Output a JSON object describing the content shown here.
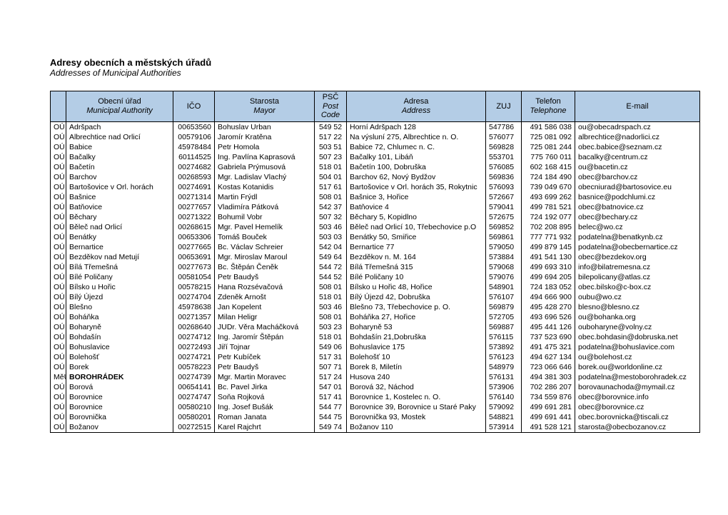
{
  "header": {
    "title_cz": "Adresy obecních a městských úřadů",
    "title_en": "Addresses of Municipal Authorities"
  },
  "table": {
    "columns": {
      "typ": {
        "label": "",
        "sub": ""
      },
      "urad": {
        "label": "Obecní úřad",
        "sub": "Municipal Authority"
      },
      "ico": {
        "label": "IČO",
        "sub": ""
      },
      "star": {
        "label": "Starosta",
        "sub": "Mayor"
      },
      "psc": {
        "label": "PSČ",
        "sub": "Post Code"
      },
      "adr": {
        "label": "Adresa",
        "sub": "Address"
      },
      "zuj": {
        "label": "ZUJ",
        "sub": ""
      },
      "tel": {
        "label": "Telefon",
        "sub": "Telephone"
      },
      "mail": {
        "label": "E-mail",
        "sub": ""
      }
    },
    "rows": [
      {
        "typ": "OÚ",
        "urad": "Adršpach",
        "ico": "00653560",
        "star": "Bohuslav Urban",
        "psc": "549 52",
        "adr": "Horní Adršpach 128",
        "zuj": "547786",
        "tel": "491 586 038",
        "mail": "ou@obecadrspach.cz"
      },
      {
        "typ": "OÚ",
        "urad": "Albrechtice nad Orlicí",
        "ico": "00579106",
        "star": "Jaromír Kratěna",
        "psc": "517 22",
        "adr": "Na výsluní 275, Albrechtice n. O.",
        "zuj": "576077",
        "tel": "725 081 092",
        "mail": "albrechtice@nadorlici.cz"
      },
      {
        "typ": "OÚ",
        "urad": "Babice",
        "ico": "45978484",
        "star": "Petr Homola",
        "psc": "503 51",
        "adr": "Babice 72, Chlumec n. C.",
        "zuj": "569828",
        "tel": "725 081 244",
        "mail": "obec.babice@seznam.cz"
      },
      {
        "typ": "OÚ",
        "urad": "Bačalky",
        "ico": "60114525",
        "star": "Ing. Pavlína Kaprasová",
        "psc": "507 23",
        "adr": "Bačalky 101, Libáň",
        "zuj": "553701",
        "tel": "775 760 011",
        "mail": "bacalky@centrum.cz"
      },
      {
        "typ": "OÚ",
        "urad": "Bačetín",
        "ico": "00274682",
        "star": "Gabriela Prýmusová",
        "psc": "518 01",
        "adr": "Bačetín 100, Dobruška",
        "zuj": "576085",
        "tel": "602 168 415",
        "mail": "ou@bacetin.cz"
      },
      {
        "typ": "OÚ",
        "urad": "Barchov",
        "ico": "00268593",
        "star": "Mgr. Ladislav Vlachý",
        "psc": "504 01",
        "adr": "Barchov 62, Nový Bydžov",
        "zuj": "569836",
        "tel": "724 184 490",
        "mail": "obec@barchov.cz"
      },
      {
        "typ": "OÚ",
        "urad": "Bartošovice v Orl. horách",
        "ico": "00274691",
        "star": "Kostas Kotanidis",
        "psc": "517 61",
        "adr": "Bartošovice v Orl. horách 35, Rokytnic",
        "zuj": "576093",
        "tel": "739 049 670",
        "mail": "obecniurad@bartosovice.eu"
      },
      {
        "typ": "OÚ",
        "urad": "Bašnice",
        "ico": "00271314",
        "star": "Martin Frýdl",
        "psc": "508 01",
        "adr": "Bašnice 3, Hořice",
        "zuj": "572667",
        "tel": "493 699 262",
        "mail": "basnice@podchlumi.cz"
      },
      {
        "typ": "OÚ",
        "urad": "Batňovice",
        "ico": "00277657",
        "star": "Vladimíra Pátková",
        "psc": "542 37",
        "adr": "Batňovice 4",
        "zuj": "579041",
        "tel": "499 781 521",
        "mail": "obec@batnovice.cz"
      },
      {
        "typ": "OÚ",
        "urad": "Běchary",
        "ico": "00271322",
        "star": "Bohumil Vobr",
        "psc": "507 32",
        "adr": "Běchary 5, Kopidlno",
        "zuj": "572675",
        "tel": "724 192 077",
        "mail": "obec@bechary.cz"
      },
      {
        "typ": "OÚ",
        "urad": "Běleč nad Orlicí",
        "ico": "00268615",
        "star": "Mgr. Pavel Hemelík",
        "psc": "503 46",
        "adr": "Běleč nad Orlicí 10, Třebechovice p.O",
        "zuj": "569852",
        "tel": "702 208 895",
        "mail": "belec@wo.cz"
      },
      {
        "typ": "OÚ",
        "urad": "Benátky",
        "ico": "00653306",
        "star": "Tomáš Bouček",
        "psc": "503 03",
        "adr": "Benátky 50, Smiřice",
        "zuj": "569861",
        "tel": "777 771 932",
        "mail": "podatelna@benatkynb.cz"
      },
      {
        "typ": "OÚ",
        "urad": "Bernartice",
        "ico": "00277665",
        "star": "Bc. Václav Schreier",
        "psc": "542 04",
        "adr": "Bernartice 77",
        "zuj": "579050",
        "tel": "499 879 145",
        "mail": "podatelna@obecbernartice.cz"
      },
      {
        "typ": "OÚ",
        "urad": "Bezděkov nad Metují",
        "ico": "00653691",
        "star": "Mgr. Miroslav Maroul",
        "psc": "549 64",
        "adr": "Bezděkov n. M. 164",
        "zuj": "573884",
        "tel": "491 541 130",
        "mail": "obec@bezdekov.org"
      },
      {
        "typ": "OÚ",
        "urad": "Bílá Třemešná",
        "ico": "00277673",
        "star": "Bc. Štěpán Čeněk",
        "psc": "544 72",
        "adr": "Bílá Třemešná 315",
        "zuj": "579068",
        "tel": "499 693 310",
        "mail": "info@bilatremesna.cz"
      },
      {
        "typ": "OÚ",
        "urad": "Bílé Poličany",
        "ico": "00581054",
        "star": "Petr Baudyš",
        "psc": "544 52",
        "adr": "Bílé Poličany 10",
        "zuj": "579076",
        "tel": "499 694 205",
        "mail": "bilepolicany@atlas.cz"
      },
      {
        "typ": "OÚ",
        "urad": "Bílsko u Hořic",
        "ico": "00578215",
        "star": "Hana Rozsévačová",
        "psc": "508 01",
        "adr": "Bílsko u Hořic 48, Hořice",
        "zuj": "548901",
        "tel": "724 183 052",
        "mail": "obec.bilsko@c-box.cz"
      },
      {
        "typ": "OÚ",
        "urad": "Bílý Újezd",
        "ico": "00274704",
        "star": "Zdeněk Arnošt",
        "psc": "518 01",
        "adr": "Bílý Újezd 42, Dobruška",
        "zuj": "576107",
        "tel": "494 666 900",
        "mail": "oubu@wo.cz"
      },
      {
        "typ": "OÚ",
        "urad": "Blešno",
        "ico": "45978638",
        "star": "Jan Kopelent",
        "psc": "503 46",
        "adr": "Blešno 73, Třebechovice p. O.",
        "zuj": "569879",
        "tel": "495 428 270",
        "mail": "blesno@blesno.cz"
      },
      {
        "typ": "OÚ",
        "urad": "Boháňka",
        "ico": "00271357",
        "star": "Milan Heligr",
        "psc": "508 01",
        "adr": "Boháňka 27, Hořice",
        "zuj": "572705",
        "tel": "493 696 526",
        "mail": "ou@bohanka.org"
      },
      {
        "typ": "OÚ",
        "urad": "Boharyně",
        "ico": "00268640",
        "star": "JUDr. Věra Macháčková",
        "psc": "503 23",
        "adr": "Boharyně 53",
        "zuj": "569887",
        "tel": "495 441 126",
        "mail": "ouboharyne@volny.cz"
      },
      {
        "typ": "OÚ",
        "urad": "Bohdašín",
        "ico": "00274712",
        "star": "Ing. Jaromír Štěpán",
        "psc": "518 01",
        "adr": "Bohdašín 21,Dobruška",
        "zuj": "576115",
        "tel": "737 523 690",
        "mail": "obec.bohdasin@dobruska.net"
      },
      {
        "typ": "OÚ",
        "urad": "Bohuslavice",
        "ico": "00272493",
        "star": "Jiří Tojnar",
        "psc": "549 06",
        "adr": "Bohuslavice 175",
        "zuj": "573892",
        "tel": "491 475 321",
        "mail": "podatelna@bohuslavice.com"
      },
      {
        "typ": "OÚ",
        "urad": "Bolehošť",
        "ico": "00274721",
        "star": "Petr Kubíček",
        "psc": "517 31",
        "adr": "Bolehošť 10",
        "zuj": "576123",
        "tel": "494 627 134",
        "mail": "ou@bolehost.cz"
      },
      {
        "typ": "OÚ",
        "urad": "Borek",
        "ico": "00578223",
        "star": "Petr Baudyš",
        "psc": "507 71",
        "adr": "Borek 8, Miletín",
        "zuj": "548979",
        "tel": "723 066 646",
        "mail": "borek.ou@worldonline.cz"
      },
      {
        "typ": "MěÚ",
        "urad": "BOROHRÁDEK",
        "bold": true,
        "ico": "00274739",
        "star": "Mgr. Martin Moravec",
        "psc": "517 24",
        "adr": "Husova 240",
        "zuj": "576131",
        "tel": "494 381 303",
        "mail": "podatelna@mestoborohradek.cz"
      },
      {
        "typ": "OÚ",
        "urad": "Borová",
        "ico": "00654141",
        "star": "Bc. Pavel Jirka",
        "psc": "547 01",
        "adr": "Borová 32, Náchod",
        "zuj": "573906",
        "tel": "702 286 207",
        "mail": "borovaunachoda@mymail.cz"
      },
      {
        "typ": "OÚ",
        "urad": "Borovnice",
        "ico": "00274747",
        "star": "Soňa Rojková",
        "psc": "517 41",
        "adr": "Borovnice 1, Kostelec n. O.",
        "zuj": "576140",
        "tel": "734 559 876",
        "mail": "obec@borovnice.info"
      },
      {
        "typ": "OÚ",
        "urad": "Borovnice",
        "ico": "00580210",
        "star": "Ing. Josef Bušák",
        "psc": "544 77",
        "adr": "Borovnice 39, Borovnice u Staré Paky",
        "zuj": "579092",
        "tel": "499 691 281",
        "mail": "obec@borovnice.cz"
      },
      {
        "typ": "OÚ",
        "urad": "Borovnička",
        "ico": "00580201",
        "star": "Roman Janata",
        "psc": "544 75",
        "adr": "Borovnička 93, Mostek",
        "zuj": "548821",
        "tel": "499 691 441",
        "mail": "obec.borovnicka@tiscali.cz"
      },
      {
        "typ": "OÚ",
        "urad": "Božanov",
        "ico": "00272515",
        "star": "Karel Rajchrt",
        "psc": "549 74",
        "adr": "Božanov 110",
        "zuj": "573914",
        "tel": "491 528 121",
        "mail": "starosta@obecbozanov.cz"
      }
    ]
  },
  "style": {
    "header_bg": "#b4cde6",
    "border_color": "#000000",
    "font_size_body": 10.5,
    "font_size_header": 11
  }
}
